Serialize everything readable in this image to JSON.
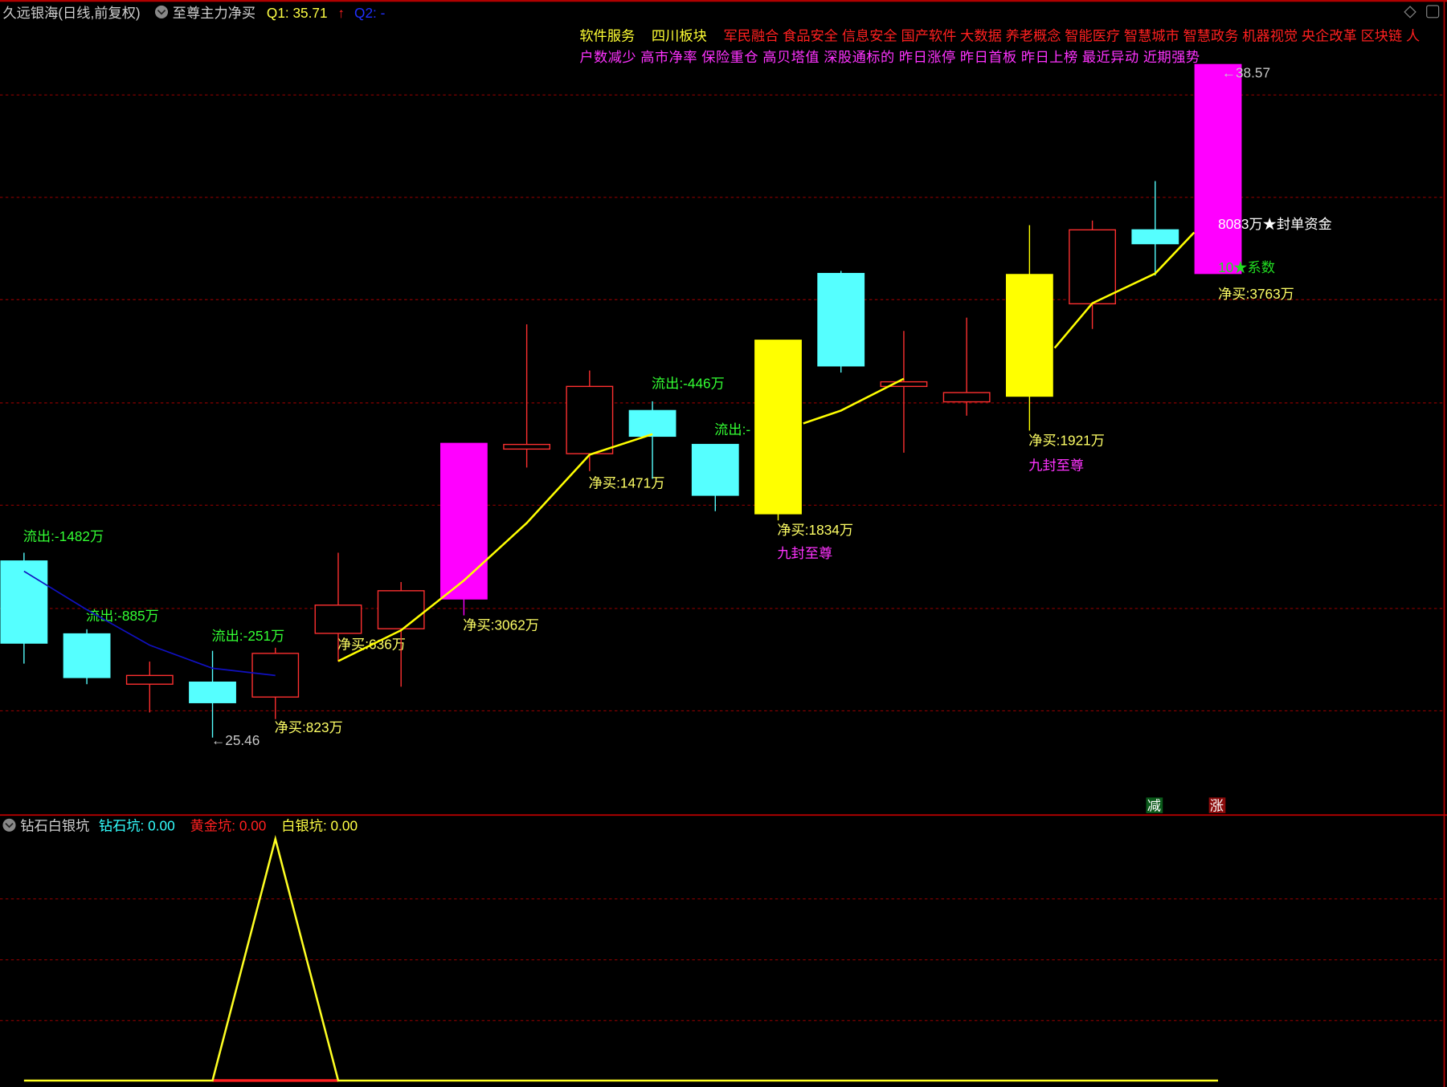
{
  "header": {
    "stock_title": "久远银海(日线,前复权)",
    "indicator_name": "至尊主力净买",
    "q1": "Q1: 35.71",
    "q1_arrow": "↑",
    "q2": "Q2: -"
  },
  "concepts": {
    "yellow_tags": [
      "软件服务",
      "四川板块"
    ],
    "red_tags": "军民融合 食品安全 信息安全 国产软件 大数据 养老概念 智能医疗 智慧城市 智慧政务 机器视觉 央企改革 区块链 人",
    "magenta_tags": "户数减少 高市净率 保险重仓 高贝塔值 深股通标的 昨日涨停 昨日首板 昨日上榜 最近异动 近期强势"
  },
  "price_marks": {
    "high": "←38.57",
    "low": "←25.46"
  },
  "right_info": {
    "seal_fund": "8083万★封单资金",
    "coef": "10★系数",
    "net_buy": "净买:3763万"
  },
  "badges": {
    "decrease": "减",
    "increase": "涨"
  },
  "sub_pane": {
    "title": "钻石白银坑",
    "diamond": "钻石坑: 0.00",
    "gold": "黄金坑: 0.00",
    "silver": "白银坑: 0.00"
  },
  "colors": {
    "up": "#ff3030",
    "down": "#55ffff",
    "limit_up": "#ff00ff",
    "strong_up": "#ffff00",
    "grid": "#8b0000",
    "ma_yellow": "#ffff00",
    "ma_blue": "#1010c0"
  },
  "chart_data": [
    {
      "type": "candlestick",
      "price_range": [
        25.46,
        38.57
      ],
      "grid": true,
      "candles": [
        {
          "o": 28.9,
          "h": 29.06,
          "l": 26.9,
          "c": 27.3,
          "style": "down"
        },
        {
          "o": 27.48,
          "h": 27.57,
          "l": 26.5,
          "c": 26.63,
          "style": "down"
        },
        {
          "o": 26.5,
          "h": 26.94,
          "l": 25.95,
          "c": 26.67,
          "style": "up"
        },
        {
          "o": 26.54,
          "h": 27.15,
          "l": 25.46,
          "c": 26.14,
          "style": "down"
        },
        {
          "o": 26.25,
          "h": 27.21,
          "l": 25.82,
          "c": 27.1,
          "style": "up"
        },
        {
          "o": 27.49,
          "h": 29.06,
          "l": 26.94,
          "c": 28.04,
          "style": "up"
        },
        {
          "o": 27.58,
          "h": 28.49,
          "l": 26.45,
          "c": 28.32,
          "style": "up"
        },
        {
          "o": 28.16,
          "h": 31.19,
          "l": 27.84,
          "c": 31.19,
          "style": "limit_up"
        },
        {
          "o": 31.08,
          "h": 33.51,
          "l": 30.72,
          "c": 31.17,
          "style": "up"
        },
        {
          "o": 30.99,
          "h": 32.61,
          "l": 30.65,
          "c": 32.3,
          "style": "up"
        },
        {
          "o": 31.83,
          "h": 32.01,
          "l": 30.5,
          "c": 31.33,
          "style": "down"
        },
        {
          "o": 31.17,
          "h": 31.17,
          "l": 29.87,
          "c": 30.18,
          "style": "down"
        },
        {
          "o": 29.82,
          "h": 33.2,
          "l": 29.69,
          "c": 33.2,
          "style": "strong_up"
        },
        {
          "o": 34.5,
          "h": 34.55,
          "l": 32.57,
          "c": 32.7,
          "style": "down"
        },
        {
          "o": 32.3,
          "h": 33.38,
          "l": 31.01,
          "c": 32.39,
          "style": "up"
        },
        {
          "o": 32.0,
          "h": 33.64,
          "l": 31.73,
          "c": 32.18,
          "style": "up"
        },
        {
          "o": 32.11,
          "h": 35.44,
          "l": 31.44,
          "c": 34.48,
          "style": "strong_up"
        },
        {
          "o": 33.91,
          "h": 35.53,
          "l": 33.42,
          "c": 35.35,
          "style": "up"
        },
        {
          "o": 35.35,
          "h": 36.3,
          "l": 34.46,
          "c": 35.08,
          "style": "down"
        },
        {
          "o": 34.5,
          "h": 38.57,
          "l": 34.5,
          "c": 38.57,
          "style": "limit_up"
        }
      ],
      "yellow_line_segments": [
        [
          [
            5,
            26.95
          ],
          [
            6,
            27.55
          ],
          [
            7,
            28.52
          ],
          [
            8,
            29.64
          ],
          [
            9,
            30.97
          ],
          [
            10,
            31.37
          ]
        ],
        [
          [
            12.4,
            31.58
          ],
          [
            13,
            31.83
          ],
          [
            14,
            32.45
          ]
        ],
        [
          [
            16.4,
            33.05
          ],
          [
            17,
            33.92
          ],
          [
            18,
            34.5
          ],
          [
            18.62,
            35.3
          ]
        ]
      ],
      "blue_line": [
        [
          0,
          28.7
        ],
        [
          1,
          27.95
        ],
        [
          2,
          27.26
        ],
        [
          3,
          26.81
        ],
        [
          4,
          26.67
        ]
      ],
      "labels": [
        {
          "i": 0,
          "text": "流出:-1482万",
          "color": "#33ff33"
        },
        {
          "i": 1,
          "text": "流出:-885万",
          "color": "#33ff33"
        },
        {
          "i": 3,
          "text": "流出:-251万",
          "color": "#33ff33"
        },
        {
          "i": 4,
          "text": "净买:823万",
          "color": "#ffff66"
        },
        {
          "i": 5,
          "text": "净买:636万",
          "color": "#ffff66"
        },
        {
          "i": 7,
          "text": "净买:3062万",
          "color": "#ffff66"
        },
        {
          "i": 9,
          "text": "净买:1471万",
          "color": "#ffff66"
        },
        {
          "i": 10,
          "text": "流出:-446万",
          "color": "#33ff33"
        },
        {
          "i": 11,
          "text": "流出:-",
          "color": "#33ff33"
        },
        {
          "i": 12,
          "text": "净买:1834万",
          "color": "#ffff66"
        },
        {
          "i": 12,
          "text": "九封至尊",
          "color": "#ff33ff"
        },
        {
          "i": 16,
          "text": "净买:1921万",
          "color": "#ffff66"
        },
        {
          "i": 16,
          "text": "九封至尊",
          "color": "#ff33ff"
        }
      ]
    },
    {
      "type": "line",
      "series": [
        {
          "name": "白银坑",
          "values": [
            0,
            0,
            0,
            0,
            1,
            0,
            0,
            0,
            0,
            0,
            0,
            0,
            0,
            0,
            0,
            0,
            0,
            0,
            0,
            0
          ]
        }
      ]
    }
  ]
}
